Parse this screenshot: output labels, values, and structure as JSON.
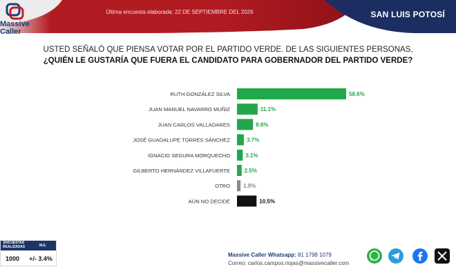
{
  "header": {
    "brand_line1": "Massive",
    "brand_line2": "Caller",
    "last_survey": "Última encuesta elaborada: 22 DE SEPTIEMBRE DEL 2026",
    "region": "SAN LUIS POTOSÍ",
    "colors": {
      "red": "#b31b22",
      "navy": "#1c2d62"
    }
  },
  "question": {
    "line1": "USTED SEÑALÓ QUE PIENSA VOTAR POR EL PARTIDO VERDE. DE LAS SIGUIENTES PERSONAS,",
    "line2": "¿QUIÉN LE GUSTARÍA QUE FUERA EL CANDIDATO PARA GOBERNADOR DEL PARTIDO VERDE?"
  },
  "chart_data": {
    "type": "bar",
    "orientation": "horizontal",
    "categories": [
      "RUTH GONZÁLEZ SILVA",
      "JUAN MANUEL NAVARRO MUÑIZ",
      "JUAN CARLOS VALLADARES",
      "JOSÉ GUADALUPE TORRES SÁNCHEZ",
      "IGNACIO SEGURA MORQUECHO",
      "GILBERTO HERNÁNDEZ VILLAFUERTE",
      "OTRO",
      "AÚN NO DECIDE"
    ],
    "values": [
      58.6,
      11.1,
      8.6,
      3.7,
      3.1,
      2.5,
      1.9,
      10.5
    ],
    "labels": [
      "58.6%",
      "11.1%",
      "8.6%",
      "3.7%",
      "3.1%",
      "2.5%",
      "1.9%",
      "10.5%"
    ],
    "colors": [
      "#22a84a",
      "#22a84a",
      "#22a84a",
      "#22a84a",
      "#22a84a",
      "#22a84a",
      "#8a8a8a",
      "#111111"
    ],
    "label_colors": [
      "#22a84a",
      "#22a84a",
      "#22a84a",
      "#22a84a",
      "#22a84a",
      "#22a84a",
      "#8a8a8a",
      "#111111"
    ],
    "xlim": [
      0,
      100
    ],
    "grid": false
  },
  "sample": {
    "col1_header": "ENCUESTAS REALIZADAS",
    "col2_header": "M.E.",
    "count": "1000",
    "margin": "+/- 3.4%"
  },
  "contact": {
    "whatsapp_label": "Massive Caller Whatsapp:",
    "whatsapp_number": "81 1798 1079",
    "email_label": "Correo:",
    "email": "carlos.campos.riojas@massivecaller.com"
  },
  "social_icons": [
    "whatsapp-icon",
    "telegram-icon",
    "facebook-icon",
    "x-icon"
  ]
}
